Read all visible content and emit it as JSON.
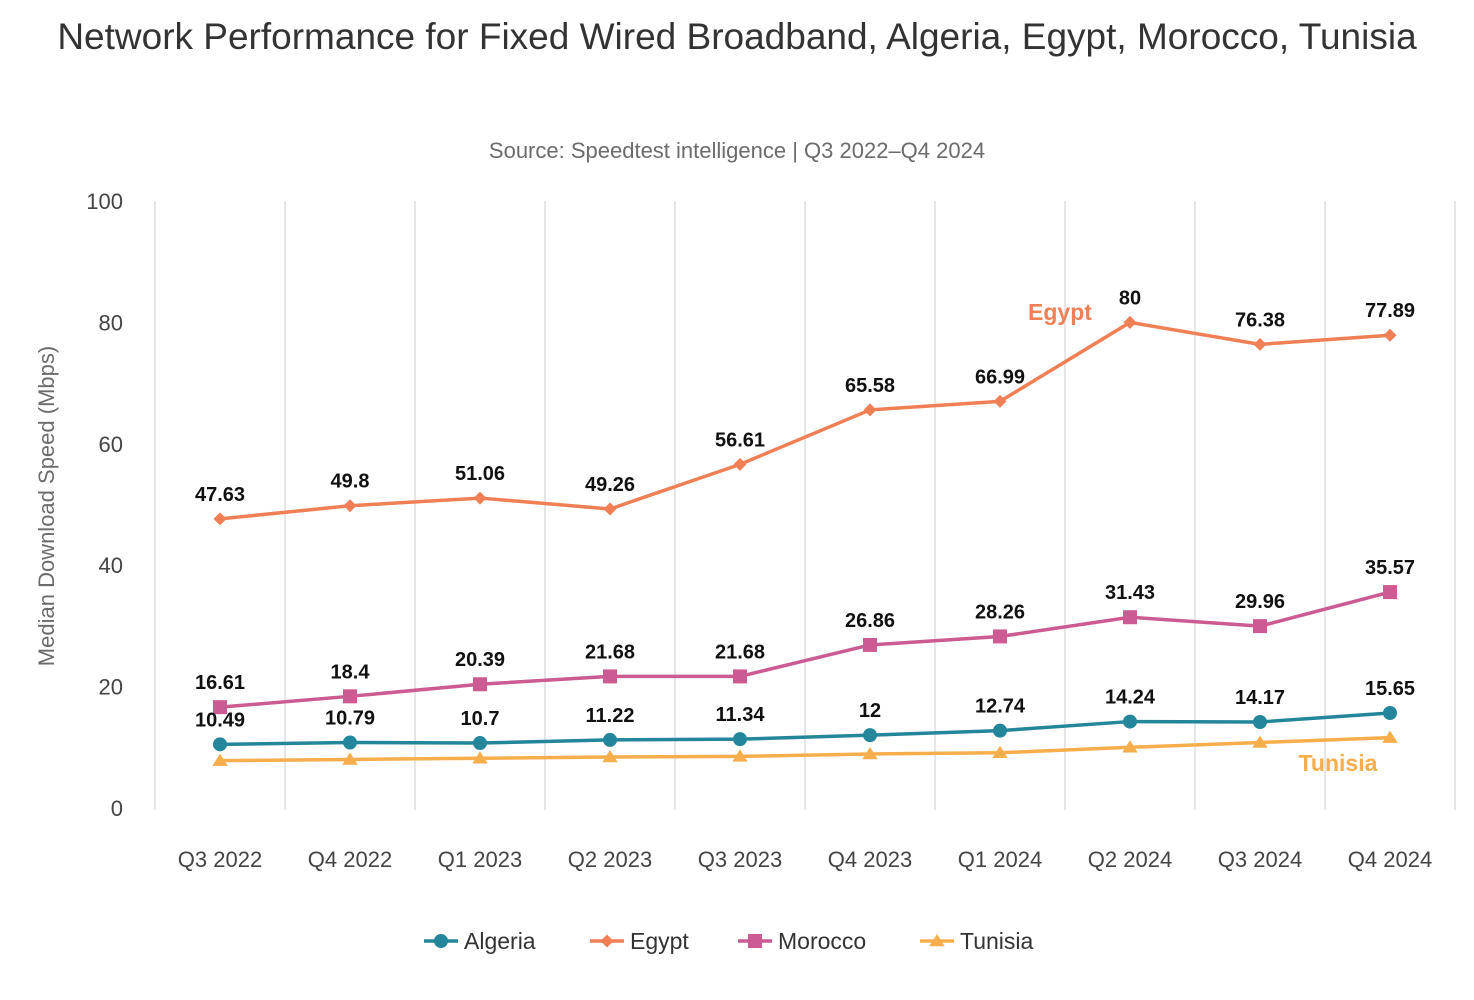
{
  "chart_data": {
    "type": "line",
    "title": "Network Performance for Fixed Wired Broadband, Algeria, Egypt, Morocco, Tunisia",
    "subtitle": "Source: Speedtest intelligence | Q3 2022–Q4 2024",
    "xlabel": "",
    "ylabel": "Median Download Speed (Mbps)",
    "ylim": [
      0,
      100
    ],
    "yticks": [
      0,
      20,
      40,
      60,
      80,
      100
    ],
    "grid": "vertical",
    "legend_position": "bottom",
    "categories": [
      "Q3 2022",
      "Q4 2022",
      "Q1 2023",
      "Q2 2023",
      "Q3 2023",
      "Q4 2023",
      "Q1 2024",
      "Q2 2024",
      "Q3 2024",
      "Q4 2024"
    ],
    "series": [
      {
        "name": "Algeria",
        "color": "#23869b",
        "marker": "circle",
        "values": [
          10.49,
          10.79,
          10.7,
          11.22,
          11.34,
          12,
          12.74,
          14.24,
          14.17,
          15.65
        ],
        "show_labels": true
      },
      {
        "name": "Egypt",
        "color": "#f07f55",
        "marker": "diamond",
        "values": [
          47.63,
          49.8,
          51.06,
          49.26,
          56.61,
          65.58,
          66.99,
          80,
          76.38,
          77.89
        ],
        "show_labels": true,
        "inline_label": "Egypt"
      },
      {
        "name": "Morocco",
        "color": "#cc5a93",
        "marker": "square",
        "values": [
          16.61,
          18.4,
          20.39,
          21.68,
          21.68,
          26.86,
          28.26,
          31.43,
          29.96,
          35.57
        ],
        "show_labels": true
      },
      {
        "name": "Tunisia",
        "color": "#f6ad4b",
        "marker": "triangle",
        "values": [
          7.8,
          8.0,
          8.2,
          8.4,
          8.5,
          8.9,
          9.1,
          10.0,
          10.8,
          11.6
        ],
        "show_labels": false,
        "inline_label": "Tunisia"
      }
    ]
  }
}
